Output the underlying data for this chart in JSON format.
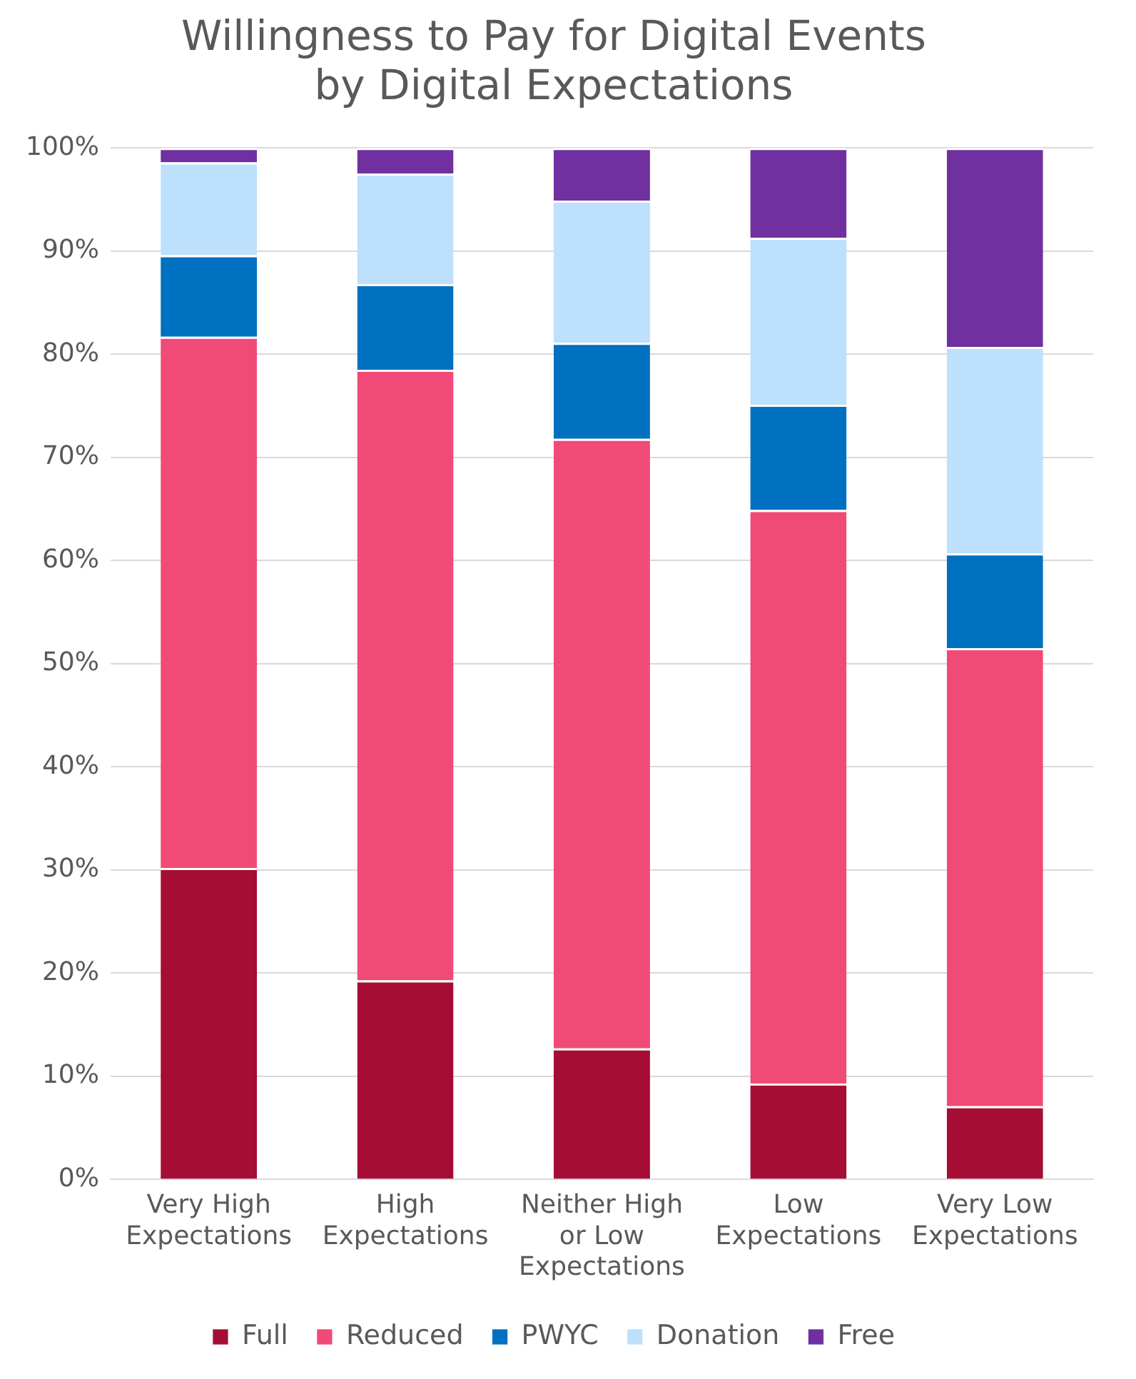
{
  "chart_data": {
    "type": "bar",
    "stacked": true,
    "title": "Willingness to Pay for Digital Events by Digital Expectations",
    "categories": [
      "Very High Expectations",
      "High Expectations",
      "Neither High or Low Expectations",
      "Low Expectations",
      "Very Low Expectations"
    ],
    "series": [
      {
        "name": "Full",
        "color": "#a50d34",
        "values": [
          30.2,
          19.3,
          12.7,
          9.3,
          7.1
        ]
      },
      {
        "name": "Reduced",
        "color": "#f04a76",
        "values": [
          51.5,
          59.2,
          59.1,
          55.6,
          44.4
        ]
      },
      {
        "name": "PWYC",
        "color": "#0070c0",
        "values": [
          7.9,
          8.3,
          9.3,
          10.2,
          9.2
        ]
      },
      {
        "name": "Donation",
        "color": "#bde0fc",
        "values": [
          9.0,
          10.7,
          13.8,
          16.2,
          20.0
        ]
      },
      {
        "name": "Free",
        "color": "#7030a0",
        "values": [
          1.4,
          2.5,
          5.1,
          8.7,
          19.3
        ]
      }
    ],
    "ylim": [
      0,
      100
    ],
    "yticks": [
      {
        "value": 0,
        "label": "0%"
      },
      {
        "value": 10,
        "label": "10%"
      },
      {
        "value": 20,
        "label": "20%"
      },
      {
        "value": 30,
        "label": "30%"
      },
      {
        "value": 40,
        "label": "40%"
      },
      {
        "value": 50,
        "label": "50%"
      },
      {
        "value": 60,
        "label": "60%"
      },
      {
        "value": 70,
        "label": "70%"
      },
      {
        "value": 80,
        "label": "80%"
      },
      {
        "value": 90,
        "label": "90%"
      },
      {
        "value": 100,
        "label": "100%"
      }
    ],
    "grid": "y",
    "legend": "bottom"
  }
}
